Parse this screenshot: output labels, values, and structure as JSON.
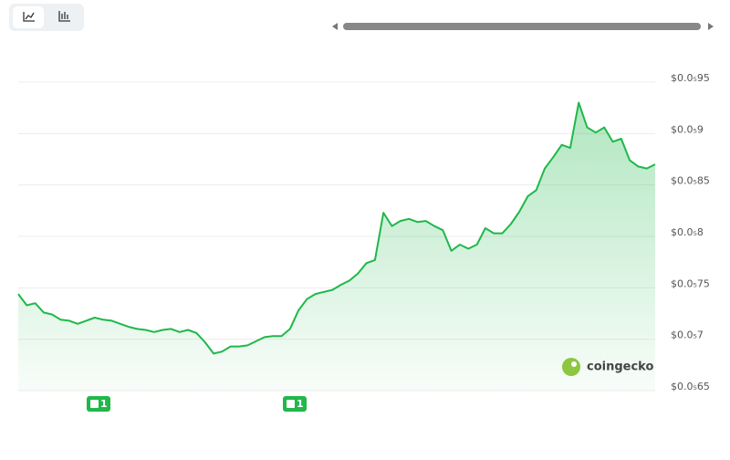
{
  "chart_data": {
    "type": "line",
    "series": [
      {
        "color": "#1fb84a",
        "values": [
          7.44e-06,
          7.33e-06,
          7.35e-06,
          7.26e-06,
          7.24e-06,
          7.19e-06,
          7.18e-06,
          7.15e-06,
          7.18e-06,
          7.21e-06,
          7.19e-06,
          7.18e-06,
          7.15e-06,
          7.12e-06,
          7.1e-06,
          7.09e-06,
          7.07e-06,
          7.09e-06,
          7.1e-06,
          7.07e-06,
          7.09e-06,
          7.06e-06,
          6.97e-06,
          6.86e-06,
          6.88e-06,
          6.93e-06,
          6.93e-06,
          6.94e-06,
          6.98e-06,
          7.02e-06,
          7.03e-06,
          7.03e-06,
          7.1e-06,
          7.28e-06,
          7.39e-06,
          7.44e-06,
          7.46e-06,
          7.48e-06,
          7.53e-06,
          7.57e-06,
          7.64e-06,
          7.74e-06,
          7.77e-06,
          8.23e-06,
          8.1e-06,
          8.15e-06,
          8.17e-06,
          8.14e-06,
          8.15e-06,
          8.1e-06,
          8.06e-06,
          7.86e-06,
          7.92e-06,
          7.88e-06,
          7.92e-06,
          8.08e-06,
          8.03e-06,
          8.03e-06,
          8.12e-06,
          8.24e-06,
          8.39e-06,
          8.45e-06,
          8.66e-06,
          8.77e-06,
          8.89e-06,
          8.86e-06,
          9.3e-06,
          9.06e-06,
          9.01e-06,
          9.06e-06,
          8.92e-06,
          8.95e-06,
          8.74e-06,
          8.68e-06,
          8.66e-06,
          8.7e-06
        ]
      }
    ],
    "ylim": [
      6.5e-06,
      9.5e-06
    ],
    "yticks": [
      {
        "value": 9.5e-06,
        "label": "$0.0₅95"
      },
      {
        "value": 9e-06,
        "label": "$0.0₅9"
      },
      {
        "value": 8.5e-06,
        "label": "$0.0₅85"
      },
      {
        "value": 8e-06,
        "label": "$0.0₅8"
      },
      {
        "value": 7.5e-06,
        "label": "$0.0₅75"
      },
      {
        "value": 7e-06,
        "label": "$0.0₅7"
      },
      {
        "value": 6.5e-06,
        "label": "$0.0₅65"
      }
    ],
    "grid": true,
    "annotations": [
      {
        "label": "1"
      },
      {
        "label": "1"
      }
    ],
    "watermark": "coingecko"
  }
}
